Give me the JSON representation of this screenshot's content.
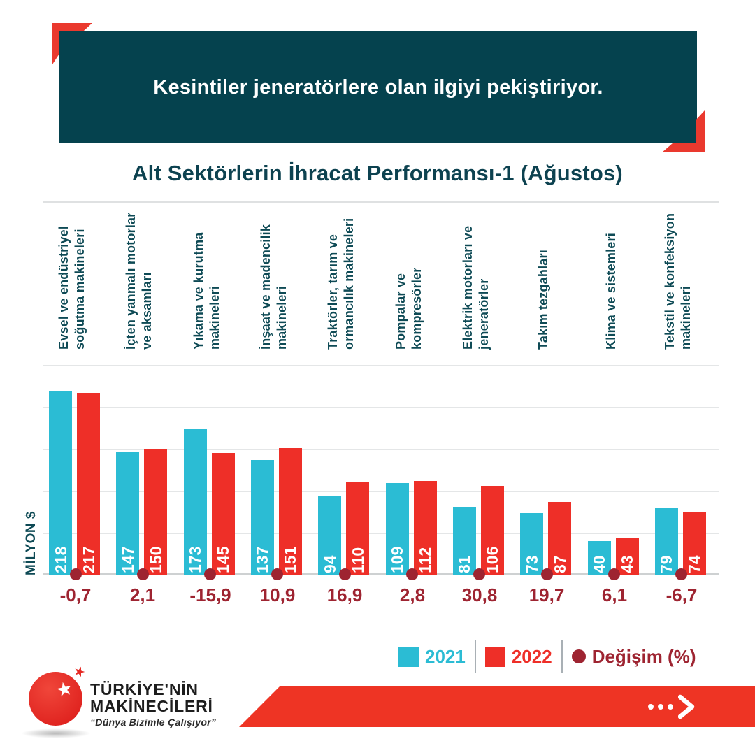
{
  "page": {
    "background": "#ffffff"
  },
  "header": {
    "banner_text": "Kesintiler jeneratörlere olan ilgiyi pekiştiriyor.",
    "panel_color": "#05424e",
    "accent_color": "#ea392e"
  },
  "chart_title": "Alt Sektörlerin İhracat Performansı-1 (Ağustos)",
  "chart_data": {
    "type": "bar",
    "title": "Alt Sektörlerin İhracat Performansı-1 (Ağustos)",
    "ylabel": "MİLYON $",
    "ylim": [
      0,
      250
    ],
    "gridline_values": [
      50,
      100,
      150,
      200,
      250
    ],
    "grid": true,
    "legend_position": "bottom-right",
    "categories": [
      "Evsel ve endüstriyel soğutma makineleri",
      "İçten yanmalı motorlar ve aksamları",
      "Yıkama ve kurutma makineleri",
      "İnşaat ve madencilik makineleri",
      "Traktörler, tarım ve ormancılık makineleri",
      "Pompalar ve kompresörler",
      "Elektrik motorları ve jeneratörler",
      "Takım tezgahları",
      "Klima ve sistemleri",
      "Tekstil ve konfeksiyon makineleri"
    ],
    "category_lines": [
      [
        "Evsel ve endüstriyel",
        "soğutma makineleri"
      ],
      [
        "İçten yanmalı motorlar",
        "ve aksamları"
      ],
      [
        "Yıkama ve kurutma",
        "makineleri"
      ],
      [
        "İnşaat ve madencilik",
        "makineleri"
      ],
      [
        "Traktörler, tarım ve",
        "ormancılık makineleri"
      ],
      [
        "Pompalar ve",
        "kompresörler"
      ],
      [
        "Elektrik motorları ve",
        "jeneratörler"
      ],
      [
        "Takım tezgahları"
      ],
      [
        "Klima ve sistemleri"
      ],
      [
        "Tekstil ve konfeksiyon",
        "makineleri"
      ]
    ],
    "series": [
      {
        "name": "2021",
        "values": [
          218,
          147,
          173,
          137,
          94,
          109,
          81,
          73,
          40,
          79
        ]
      },
      {
        "name": "2022",
        "values": [
          217,
          150,
          145,
          151,
          110,
          112,
          106,
          87,
          43,
          74
        ]
      }
    ],
    "change_percent": [
      "-0,7",
      "2,1",
      "-15,9",
      "10,9",
      "16,9",
      "2,8",
      "30,8",
      "19,7",
      "6,1",
      "-6,7"
    ],
    "colors": {
      "2021": "#2bbcd4",
      "2022": "#ee2f28",
      "change": "#9e2431"
    }
  },
  "legend": {
    "items": [
      {
        "label": "2021",
        "color": "#2bbcd4",
        "shape": "square"
      },
      {
        "label": "2022",
        "color": "#ee2f28",
        "shape": "square"
      },
      {
        "label": "Değişim (%)",
        "color": "#9e2431",
        "shape": "circle"
      }
    ]
  },
  "footer": {
    "logo_line1": "TÜRKİYE'NİN",
    "logo_line2": "MAKİNECİLERİ",
    "tagline": "“Dünya Bizimle Çalışıyor”",
    "star_icon": "star",
    "next_icon": "chevron-right",
    "banner_color": "#ee3424"
  }
}
